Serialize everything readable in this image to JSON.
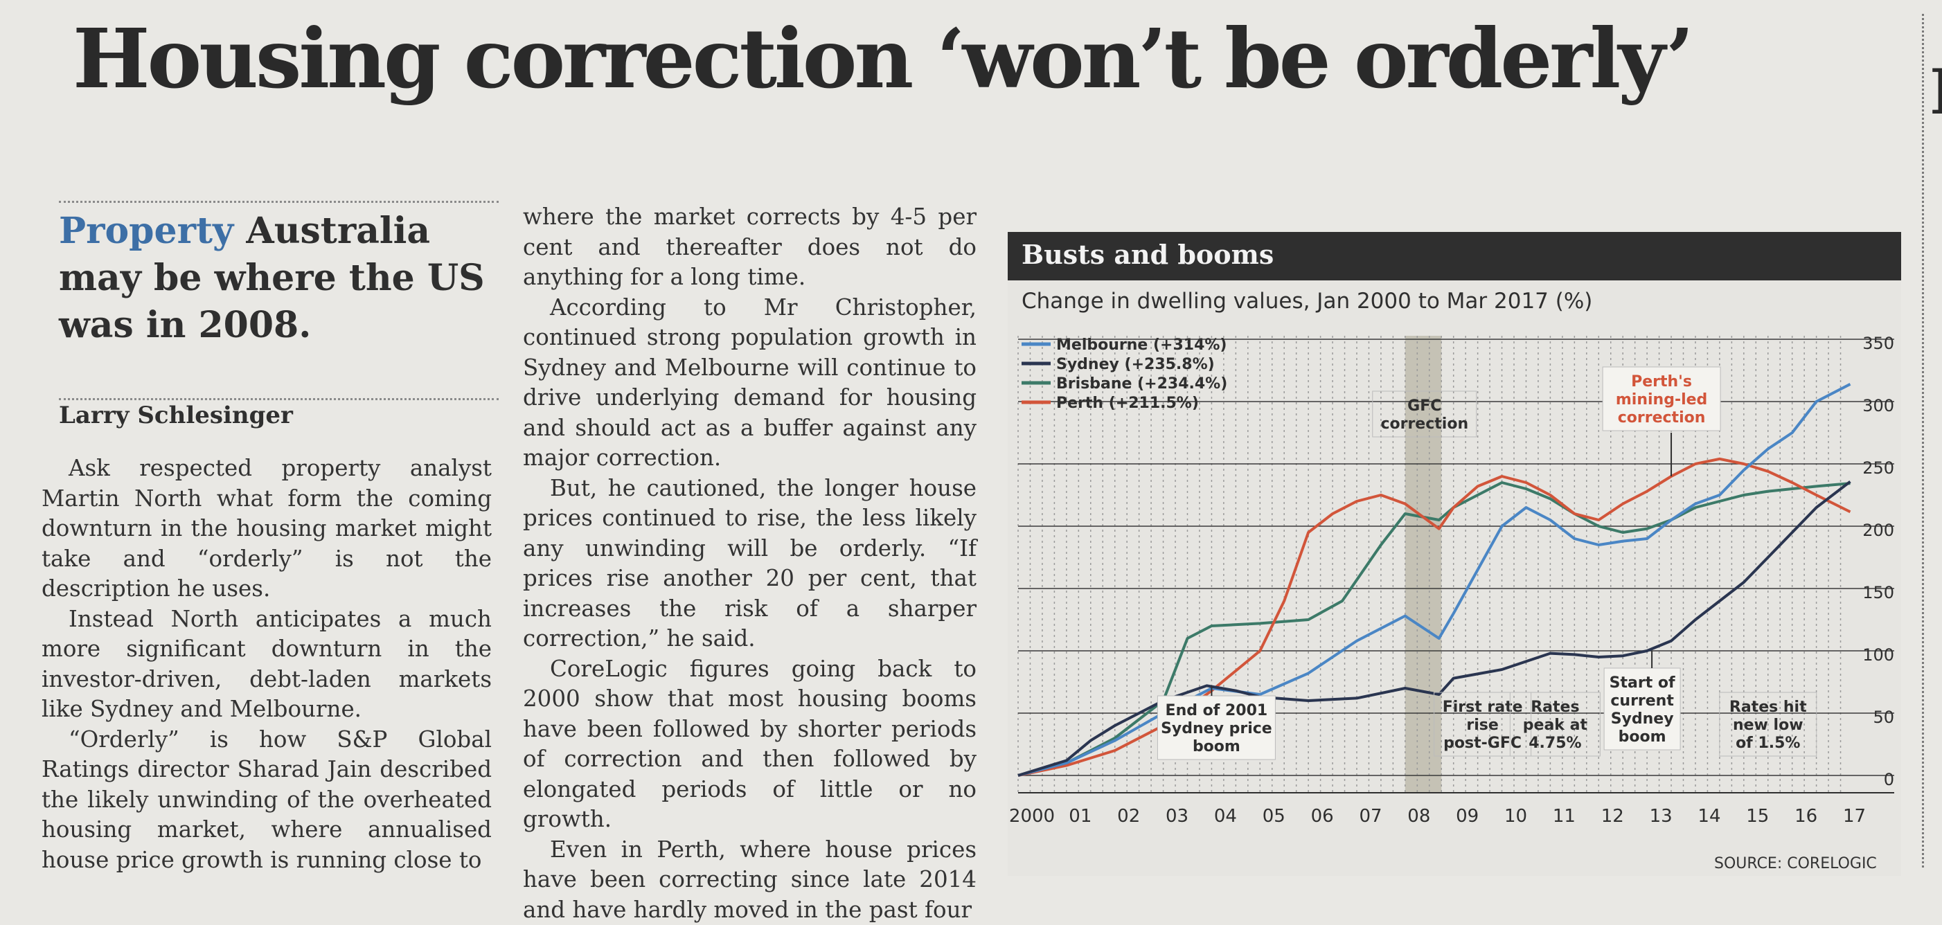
{
  "article": {
    "headline": "Housing correction ‘won’t be orderly’",
    "standfirst_kicker": "Property",
    "standfirst_text": "Australia may be where the US was in 2008.",
    "byline": "Larry Schlesinger",
    "col1": [
      "Ask respected property analyst Martin North what form the coming downturn in the housing market might take and “orderly” is not the description he uses.",
      "Instead North anticipates a much more significant downturn in the investor-driven, debt-laden markets like Sydney and Melbourne.",
      "“Orderly” is how S&P Global Ratings director Sharad Jain described the likely unwinding of the overheated housing market, where annualised house price growth is running close to"
    ],
    "col2": [
      "where the market corrects by 4-5 per cent and thereafter does not do anything for a long time.",
      "According to Mr Christopher, continued strong population growth in Sydney and Melbourne will continue to drive underlying demand for housing and should act as a buffer against any major correction.",
      "But, he cautioned, the longer house prices continued to rise, the less likely any unwinding will be orderly. “If prices rise another 20 per cent, that increases the risk of a sharper correction,” he said.",
      "CoreLogic figures going back to 2000 show that most housing booms have been followed by shorter periods of correction and then followed by elongated periods of little or no growth.",
      "Even in Perth, where house prices have been correcting since late 2014 and have hardly moved in the past four"
    ]
  },
  "chart": {
    "header": "Busts and booms",
    "subtitle": "Change in dwelling values, Jan 2000 to Mar 2017 (%)",
    "source": "SOURCE: CORELOGIC",
    "annotations": {
      "gfc": "GFC correction",
      "perth": "Perth's mining-led correction",
      "end2001": "End of 2001 Sydney price boom",
      "first_rate": "First rate rise post-GFC",
      "rates_peak": "Rates peak at 4.75%",
      "start_sydney": "Start of current Sydney boom",
      "rates_low": "Rates hit new low of 1.5%"
    }
  },
  "chart_data": {
    "type": "line",
    "title": "Change in dwelling values, Jan 2000 to Mar 2017 (%)",
    "x_tick_labels": [
      "2000",
      "01",
      "02",
      "03",
      "04",
      "05",
      "06",
      "07",
      "08",
      "09",
      "10",
      "11",
      "12",
      "13",
      "14",
      "15",
      "16",
      "17"
    ],
    "y_ticks": [
      0,
      50,
      100,
      150,
      200,
      250,
      300,
      350
    ],
    "ylim": [
      0,
      350
    ],
    "xlim": [
      2000,
      2017.25
    ],
    "grid": true,
    "legend_position": "top-left",
    "colors": {
      "Melbourne": "#4a86c5",
      "Sydney": "#2a3550",
      "Brisbane": "#3c7a68",
      "Perth": "#d2553a",
      "shade": "#b9b6a6"
    },
    "shaded_region": [
      2008.0,
      2008.75
    ],
    "series": [
      {
        "name": "Melbourne (+314%)",
        "x": [
          2000,
          2001,
          2002,
          2003,
          2004,
          2005,
          2006,
          2007,
          2008,
          2008.7,
          2009,
          2009.5,
          2010,
          2010.5,
          2011,
          2011.5,
          2012,
          2012.5,
          2013,
          2013.5,
          2014,
          2014.5,
          2015,
          2015.5,
          2016,
          2016.5,
          2017.2
        ],
        "y": [
          0,
          10,
          28,
          50,
          70,
          65,
          82,
          108,
          128,
          110,
          130,
          165,
          200,
          215,
          205,
          190,
          185,
          188,
          190,
          205,
          218,
          225,
          245,
          262,
          275,
          300,
          314
        ]
      },
      {
        "name": "Sydney (+235.8%)",
        "x": [
          2000,
          2001,
          2001.5,
          2002,
          2003,
          2003.9,
          2004.5,
          2005,
          2006,
          2007,
          2008,
          2008.7,
          2009,
          2010,
          2011,
          2011.5,
          2012,
          2012.5,
          2013,
          2013.5,
          2014,
          2014.5,
          2015,
          2015.5,
          2016,
          2016.5,
          2017.2
        ],
        "y": [
          0,
          12,
          28,
          40,
          60,
          72,
          68,
          63,
          60,
          62,
          70,
          65,
          78,
          85,
          98,
          97,
          95,
          96,
          100,
          108,
          125,
          140,
          155,
          175,
          195,
          215,
          235.8
        ]
      },
      {
        "name": "Brisbane (+234.4%)",
        "x": [
          2000,
          2001,
          2002,
          2003,
          2003.5,
          2004,
          2005,
          2006,
          2006.7,
          2007.5,
          2008,
          2008.7,
          2009,
          2009.5,
          2010,
          2010.5,
          2011,
          2011.5,
          2012,
          2012.5,
          2013,
          2013.5,
          2014,
          2014.5,
          2015,
          2015.5,
          2016,
          2016.5,
          2017.2
        ],
        "y": [
          0,
          10,
          30,
          60,
          110,
          120,
          122,
          125,
          140,
          185,
          210,
          205,
          215,
          225,
          235,
          230,
          222,
          210,
          200,
          195,
          198,
          205,
          215,
          220,
          225,
          228,
          230,
          232,
          234.4
        ]
      },
      {
        "name": "Perth (+211.5%)",
        "x": [
          2000,
          2001,
          2002,
          2003,
          2004,
          2005,
          2005.5,
          2006,
          2006.5,
          2007,
          2007.5,
          2008,
          2008.7,
          2009,
          2009.5,
          2010,
          2010.5,
          2011,
          2011.5,
          2012,
          2012.5,
          2013,
          2013.5,
          2014,
          2014.5,
          2015,
          2015.5,
          2016,
          2016.5,
          2017.2
        ],
        "y": [
          0,
          8,
          20,
          40,
          68,
          100,
          140,
          195,
          210,
          220,
          225,
          218,
          198,
          215,
          232,
          240,
          235,
          225,
          210,
          205,
          218,
          228,
          240,
          250,
          254,
          250,
          244,
          235,
          225,
          211.5
        ]
      }
    ]
  }
}
